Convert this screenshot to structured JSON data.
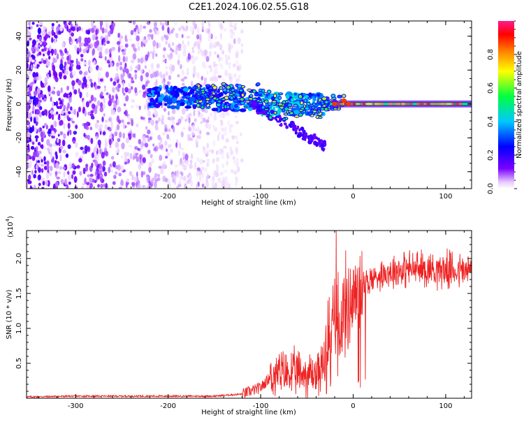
{
  "figure_title": "C2E1.2024.106.02.55.G18",
  "chart_data": [
    {
      "type": "heatmap",
      "xlabel": "Height of straight line (km)",
      "ylabel": "Frequency (Hz)",
      "xlim": [
        -353,
        128
      ],
      "ylim": [
        -50,
        49
      ],
      "xticks": [
        -300,
        -200,
        -100,
        0,
        100
      ],
      "yticks": [
        -40,
        -20,
        0,
        20,
        40
      ],
      "xtick_labels": [
        "-300",
        "-200",
        "-100",
        "0",
        "100"
      ],
      "ytick_labels": [
        "-40",
        "-20",
        "0",
        "20",
        "40"
      ],
      "colorbar": {
        "label": "Normalized spectral amplitude",
        "range": [
          0,
          1
        ],
        "ticks": [
          0.0,
          0.2,
          0.4,
          0.6,
          0.8
        ],
        "tick_labels": [
          "0.0",
          "0.2",
          "0.4",
          "0.6",
          "0.8"
        ],
        "colors": [
          "#ffffff",
          "#e6c8ff",
          "#7a00ff",
          "#0000ff",
          "#00c8ff",
          "#00ff40",
          "#ffff00",
          "#ff8000",
          "#ff0000",
          "#ff1a8c"
        ]
      },
      "features": {
        "noise_region_x": [
          -353,
          -130
        ],
        "carrier_line": {
          "x": [
            -220,
            128
          ],
          "frequency_hz": 0
        },
        "descending_branch": {
          "x": [
            -110,
            -30
          ],
          "frequency_hz": [
            0,
            -25
          ]
        }
      }
    },
    {
      "type": "line",
      "xlabel": "Height of straight line (km)",
      "ylabel": "SNR (10 * v/v)",
      "y_multiplier_label": "(x10",
      "y_multiplier_exp": "4",
      "y_multiplier_close": ")",
      "xlim": [
        -353,
        128
      ],
      "ylim": [
        0,
        2.4
      ],
      "xticks": [
        -300,
        -200,
        -100,
        0,
        100
      ],
      "yticks": [
        0.5,
        1.0,
        1.5,
        2.0
      ],
      "xtick_labels": [
        "-300",
        "-200",
        "-100",
        "0",
        "100"
      ],
      "ytick_labels": [
        "0.5",
        "1.0",
        "1.5",
        "2.0"
      ],
      "line_color": "#ee2222",
      "series": [
        {
          "x": [
            -353,
            -300,
            -250,
            -200,
            -150,
            -120,
            -100,
            -90,
            -80,
            -60,
            -40,
            -30,
            -25,
            -20,
            -15,
            -10,
            0,
            10,
            20,
            30,
            40,
            50,
            60,
            70,
            80,
            90,
            100,
            110,
            128
          ],
          "y": [
            0.02,
            0.03,
            0.03,
            0.03,
            0.03,
            0.06,
            0.15,
            0.3,
            0.35,
            0.35,
            0.35,
            0.5,
            0.8,
            1.0,
            1.1,
            1.25,
            1.45,
            1.6,
            1.7,
            1.78,
            1.82,
            1.84,
            1.85,
            1.85,
            1.85,
            1.85,
            1.84,
            1.83,
            1.82
          ]
        }
      ]
    }
  ]
}
